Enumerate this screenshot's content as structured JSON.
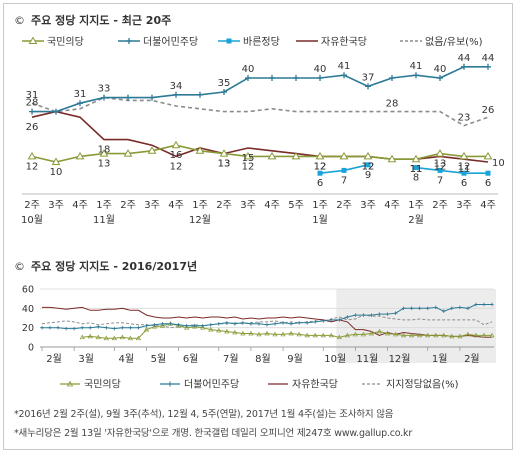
{
  "chart_data": [
    {
      "type": "line",
      "title": "주요 정당 지지도 - 최근 20주",
      "title_symbol": "©",
      "legend": [
        "국민의당",
        "더불어민주당",
        "바른정당",
        "자유한국당",
        "없음/유보(%)"
      ],
      "legend_placement": "top",
      "ylim": [
        0,
        50
      ],
      "categories": [
        "2주",
        "3주",
        "4주",
        "1주",
        "2주",
        "3주",
        "4주",
        "1주",
        "2주",
        "3주",
        "4주",
        "5주",
        "1주",
        "2주",
        "3주",
        "4주",
        "1주",
        "2주",
        "3주",
        "4주"
      ],
      "month_labels": [
        {
          "text": "10월",
          "index": 0
        },
        {
          "text": "11월",
          "index": 3
        },
        {
          "text": "12월",
          "index": 7
        },
        {
          "text": "1월",
          "index": 12
        },
        {
          "text": "2월",
          "index": 16
        }
      ],
      "series": [
        {
          "name": "국민의당",
          "color": "#8a9a38",
          "marker": "triangle",
          "values": [
            12,
            10,
            12,
            13,
            13,
            14,
            16,
            14,
            13,
            12,
            12,
            12,
            12,
            12,
            12,
            11,
            11,
            13,
            12,
            12
          ],
          "labels": [
            12,
            10,
            null,
            13,
            null,
            null,
            16,
            null,
            13,
            12,
            null,
            null,
            12,
            null,
            12,
            null,
            11,
            13,
            12,
            null
          ]
        },
        {
          "name": "더불어민주당",
          "color": "#2c7a96",
          "marker": "plus",
          "values": [
            28,
            28,
            31,
            33,
            33,
            33,
            34,
            34,
            35,
            40,
            40,
            40,
            40,
            41,
            37,
            40,
            41,
            40,
            44,
            44
          ],
          "labels": [
            28,
            null,
            31,
            33,
            null,
            null,
            34,
            null,
            35,
            40,
            null,
            null,
            40,
            41,
            37,
            null,
            41,
            40,
            44,
            44
          ]
        },
        {
          "name": "바른정당",
          "color": "#1aa3d9",
          "marker": "square",
          "values": [
            null,
            null,
            null,
            null,
            null,
            null,
            null,
            null,
            null,
            null,
            null,
            null,
            6,
            7,
            9,
            null,
            8,
            7,
            6,
            6
          ],
          "labels": [
            null,
            null,
            null,
            null,
            null,
            null,
            null,
            null,
            null,
            null,
            null,
            null,
            6,
            7,
            9,
            null,
            8,
            7,
            6,
            6
          ]
        },
        {
          "name": "자유한국당",
          "color": "#7a2a28",
          "marker": "none",
          "values": [
            26,
            28,
            26,
            18,
            18,
            16,
            12,
            15,
            13,
            15,
            14,
            13,
            12,
            12,
            12,
            11,
            11,
            12,
            11,
            10
          ],
          "labels": [
            26,
            null,
            null,
            18,
            null,
            null,
            12,
            null,
            13,
            15,
            null,
            null,
            12,
            null,
            12,
            null,
            11,
            12,
            11,
            10
          ]
        },
        {
          "name": "없음/유보(%)",
          "color": "#8c8c8c",
          "marker": "none",
          "dashed": true,
          "values": [
            31,
            28,
            29,
            33,
            32,
            32,
            30,
            29,
            28,
            28,
            29,
            28,
            28,
            28,
            28,
            28,
            28,
            28,
            23,
            26
          ],
          "labels": [
            31,
            null,
            null,
            null,
            null,
            null,
            null,
            null,
            null,
            null,
            null,
            null,
            null,
            null,
            null,
            28,
            null,
            null,
            23,
            26
          ]
        }
      ]
    },
    {
      "type": "line",
      "title": "주요 정당 지지도 - 2016/2017년",
      "title_symbol": "©",
      "ylim": [
        0,
        60
      ],
      "yticks": [
        0,
        20,
        40,
        60
      ],
      "xticks": [
        "2월",
        "3월",
        "4월",
        "5월",
        "6월",
        "7월",
        "8월",
        "9월",
        "10월",
        "11월",
        "12월",
        "1월",
        "2월"
      ],
      "x_unit": "week index from 2016년 2월 1주",
      "highlight": {
        "from_week": 37,
        "to_week": 57
      },
      "legend": [
        "국민의당",
        "더불어민주당",
        "자유한국당",
        "지지정당없음(%)"
      ],
      "legend_placement": "bottom",
      "series": [
        {
          "name": "국민의당",
          "color": "#8a9a38",
          "values": [
            null,
            null,
            null,
            null,
            null,
            10,
            11,
            10,
            9,
            9,
            10,
            9,
            9,
            18,
            21,
            22,
            24,
            22,
            20,
            21,
            20,
            18,
            17,
            16,
            15,
            14,
            14,
            13,
            14,
            13,
            13,
            14,
            13,
            12,
            12,
            12,
            12,
            10,
            12,
            13,
            13,
            14,
            16,
            14,
            13,
            12,
            12,
            12,
            12,
            12,
            12,
            11,
            11,
            13,
            12,
            12,
            12
          ]
        },
        {
          "name": "더불어민주당",
          "color": "#2c7a96",
          "values": [
            20,
            20,
            20,
            19,
            19,
            20,
            20,
            21,
            20,
            19,
            20,
            20,
            20,
            22,
            23,
            24,
            24,
            23,
            22,
            22,
            22,
            23,
            24,
            25,
            24,
            25,
            24,
            24,
            23,
            24,
            25,
            24,
            25,
            25,
            26,
            27,
            28,
            28,
            31,
            33,
            33,
            33,
            34,
            34,
            35,
            40,
            40,
            40,
            40,
            41,
            37,
            40,
            41,
            40,
            44,
            44,
            44
          ]
        },
        {
          "name": "자유한국당",
          "color": "#7a2a28",
          "values": [
            41,
            41,
            40,
            39,
            40,
            41,
            38,
            38,
            39,
            39,
            40,
            38,
            38,
            33,
            31,
            30,
            30,
            31,
            30,
            31,
            30,
            31,
            31,
            30,
            31,
            29,
            30,
            29,
            30,
            30,
            31,
            30,
            31,
            30,
            29,
            28,
            26,
            28,
            26,
            18,
            18,
            16,
            12,
            15,
            13,
            15,
            14,
            13,
            12,
            12,
            12,
            11,
            11,
            12,
            11,
            10,
            10
          ]
        },
        {
          "name": "지지정당없음(%)",
          "color": "#8c8c8c",
          "dashed": true,
          "values": [
            24,
            25,
            26,
            27,
            26,
            24,
            25,
            23,
            24,
            25,
            25,
            24,
            23,
            23,
            22,
            22,
            20,
            21,
            22,
            23,
            22,
            23,
            24,
            24,
            25,
            24,
            25,
            26,
            26,
            27,
            25,
            26,
            25,
            26,
            27,
            27,
            29,
            31,
            28,
            29,
            33,
            32,
            32,
            30,
            29,
            28,
            28,
            29,
            28,
            28,
            28,
            28,
            28,
            28,
            28,
            23,
            26
          ]
        }
      ]
    }
  ],
  "footnotes": [
    "*2016년 2월 2주(설), 9월 3주(추석), 12월 4, 5주(연말), 2017년 1월 4주(설)는 조사하지 않음",
    "*새누리당은 2월 13일 '자유한국당'으로 개명. 한국갤럽 데일리 오피니언 제247호 www.gallup.co.kr"
  ]
}
